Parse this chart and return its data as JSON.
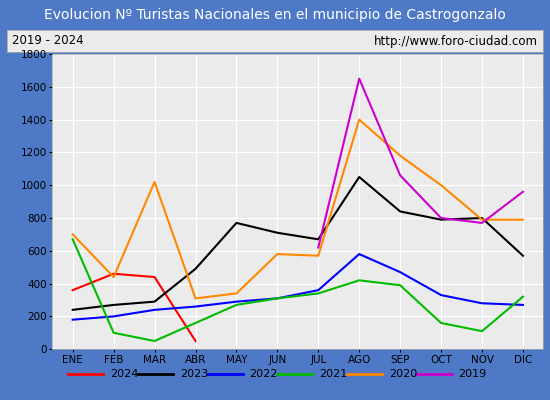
{
  "title": "Evolucion Nº Turistas Nacionales en el municipio de Castrogonzalo",
  "subtitle_left": "2019 - 2024",
  "subtitle_right": "http://www.foro-ciudad.com",
  "x_labels": [
    "ENE",
    "FEB",
    "MAR",
    "ABR",
    "MAY",
    "JUN",
    "JUL",
    "AGO",
    "SEP",
    "OCT",
    "NOV",
    "DIC"
  ],
  "ylim": [
    0,
    1800
  ],
  "yticks": [
    0,
    200,
    400,
    600,
    800,
    1000,
    1200,
    1400,
    1600,
    1800
  ],
  "series": {
    "2024": {
      "color": "#ff0000",
      "data": [
        360,
        460,
        440,
        50,
        null,
        null,
        null,
        null,
        null,
        null,
        null,
        null
      ]
    },
    "2023": {
      "color": "#000000",
      "data": [
        240,
        270,
        290,
        490,
        770,
        710,
        670,
        1050,
        840,
        790,
        800,
        570
      ]
    },
    "2022": {
      "color": "#0000ff",
      "data": [
        180,
        200,
        240,
        260,
        290,
        310,
        360,
        580,
        470,
        330,
        280,
        270
      ]
    },
    "2021": {
      "color": "#00bb00",
      "data": [
        670,
        100,
        50,
        160,
        270,
        310,
        340,
        420,
        390,
        160,
        110,
        320
      ]
    },
    "2020": {
      "color": "#ff8800",
      "data": [
        700,
        440,
        1020,
        310,
        340,
        580,
        570,
        1400,
        1180,
        1000,
        790,
        790
      ]
    },
    "2019": {
      "color": "#cc00cc",
      "data": [
        null,
        null,
        null,
        null,
        null,
        null,
        620,
        1650,
        1060,
        800,
        770,
        960
      ]
    }
  },
  "legend_order": [
    "2024",
    "2023",
    "2022",
    "2021",
    "2020",
    "2019"
  ],
  "title_bgcolor": "#4d79c7",
  "title_color": "#ffffff",
  "plot_bgcolor": "#ebebeb",
  "grid_color": "#ffffff",
  "outer_bgcolor": "#4d79c7",
  "subtitle_bgcolor": "#ebebeb",
  "title_fontsize": 10,
  "subtitle_fontsize": 8.5,
  "tick_fontsize": 7.5
}
